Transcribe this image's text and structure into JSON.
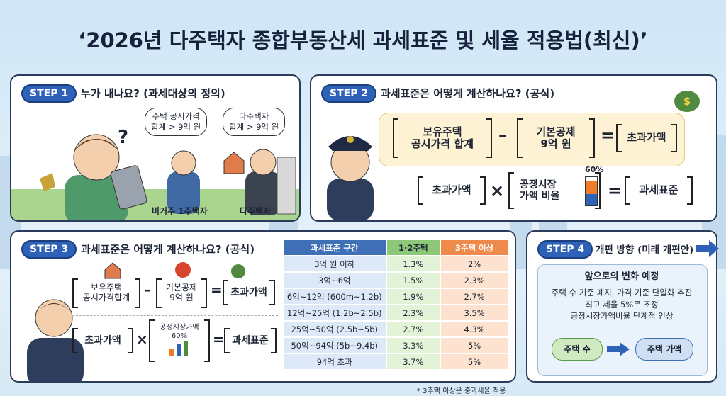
{
  "title": "‘2026년 다주택자 종합부동산세 과세표준 및 세율 적용법(최신)’",
  "step1": {
    "badge": "STEP 1",
    "heading": "누가 내나요? (과세대상의 정의)",
    "question_mark": "?",
    "bubbles": [
      [
        "주택 공시가격",
        "합계 > 9억 원"
      ],
      [
        "다주택자",
        "합계 > 9억 원"
      ]
    ],
    "labels": [
      "비거주 1주택자",
      "다주택자"
    ]
  },
  "step2": {
    "badge": "STEP 2",
    "heading": "과세표준은 어떻게 계산하나요? (공식)",
    "formula1": {
      "a": [
        "보유주택",
        "공시가격 합계"
      ],
      "minus": "–",
      "b": [
        "기본공제",
        "9억 원"
      ],
      "eq": "=",
      "c": "초과가액"
    },
    "formula2": {
      "a": "초과가액",
      "times": "×",
      "b": [
        "공정시장",
        "가액 비율"
      ],
      "pct": "60%",
      "eq": "=",
      "c": "과세표준"
    }
  },
  "step3": {
    "badge": "STEP 3",
    "heading": "과세표준은 어떻게 계산하나요? (공식)",
    "formula1": {
      "a": [
        "보유주택",
        "공시가격합계"
      ],
      "minus": "–",
      "b": [
        "기본공제",
        "9억 원"
      ],
      "eq": "=",
      "c": "초과가액"
    },
    "formula2": {
      "a": "초과가액",
      "times": "×",
      "b": [
        "공정시장가액",
        "60%"
      ],
      "eq": "=",
      "c": "과세표준"
    },
    "table": {
      "header": [
        "과세표준 구간",
        "1·2주택",
        "3주택 이상"
      ],
      "rows": [
        [
          "3억 원 이하",
          "1.3%",
          "2%"
        ],
        [
          "3억~6억",
          "1.5%",
          "2.3%"
        ],
        [
          "6억~12억 (600m~1.2b)",
          "1.9%",
          "2.7%"
        ],
        [
          "12억~25억 (1.2b~2.5b)",
          "2.3%",
          "3.5%"
        ],
        [
          "25억~50억 (2.5b~5b)",
          "2.7%",
          "4.3%"
        ],
        [
          "50억~94억 (5b~9.4b)",
          "3.3%",
          "5%"
        ],
        [
          "94억 초과",
          "3.7%",
          "5%"
        ]
      ]
    },
    "footnote": "* 3주택 이상은 중과세율 적용"
  },
  "step4": {
    "badge": "STEP 4",
    "heading": "개편 방향 (미래 개편안)",
    "box_title": "앞으로의 변화 예정",
    "lines": [
      "주택 수 기준 폐지, 가격 기준 단일화 추진",
      "최고 세율 5%로 조정",
      "공정시장가액비율 단계적 인상"
    ],
    "flow": [
      "주택 수",
      "주택 가액"
    ]
  }
}
